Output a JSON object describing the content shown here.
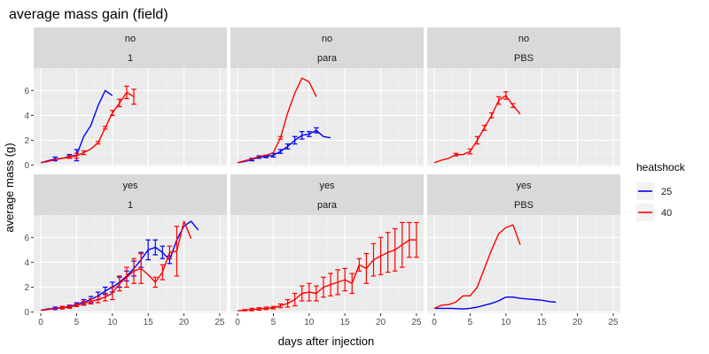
{
  "chart_data": {
    "type": "line",
    "title": "average mass gain (field)",
    "xlabel": "days after injection",
    "ylabel": "average mass (g)",
    "xlim": [
      -1,
      26
    ],
    "ylim": [
      -0.1,
      7.8
    ],
    "x_ticks": [
      0,
      5,
      10,
      15,
      20,
      25
    ],
    "y_ticks": [
      0,
      2,
      4,
      6
    ],
    "grid": true,
    "legend": {
      "title": "heatshock",
      "position": "right",
      "entries": [
        {
          "label": "25",
          "color": "#0000ff"
        },
        {
          "label": "40",
          "color": "#ff0000"
        }
      ]
    },
    "panels": [
      {
        "strip_top": "no",
        "strip_bottom": "1",
        "series": [
          {
            "name": "25",
            "color": "#0000ff",
            "x": [
              0,
              1,
              2,
              3,
              4,
              5,
              6,
              7,
              8,
              9,
              10
            ],
            "y": [
              0.2,
              0.35,
              0.5,
              0.55,
              0.7,
              0.8,
              2.3,
              3.2,
              4.8,
              6.0,
              5.6
            ],
            "err": [
              0,
              0,
              0.15,
              0,
              0.15,
              0.45,
              0,
              0,
              0,
              0,
              0
            ]
          },
          {
            "name": "40",
            "color": "#ff0000",
            "x": [
              0,
              1,
              2,
              3,
              4,
              5,
              6,
              7,
              8,
              9,
              10,
              11,
              12,
              13
            ],
            "y": [
              0.2,
              0.3,
              0.45,
              0.55,
              0.65,
              0.75,
              1.0,
              1.3,
              1.8,
              3.0,
              4.2,
              5.0,
              5.85,
              5.5
            ],
            "err": [
              0,
              0,
              0,
              0,
              0.1,
              0.2,
              0.15,
              0,
              0.1,
              0.1,
              0.2,
              0.3,
              0.5,
              0.6
            ]
          }
        ]
      },
      {
        "strip_top": "no",
        "strip_bottom": "para",
        "series": [
          {
            "name": "25",
            "color": "#0000ff",
            "x": [
              0,
              1,
              2,
              3,
              4,
              5,
              6,
              7,
              8,
              9,
              10,
              11,
              12,
              13
            ],
            "y": [
              0.2,
              0.3,
              0.45,
              0.65,
              0.7,
              0.8,
              1.1,
              1.5,
              2.0,
              2.4,
              2.5,
              2.8,
              2.3,
              2.2
            ],
            "err": [
              0,
              0,
              0.1,
              0.1,
              0.1,
              0.15,
              0.15,
              0.2,
              0.3,
              0.3,
              0.2,
              0.2,
              0,
              0
            ]
          },
          {
            "name": "40",
            "color": "#ff0000",
            "x": [
              0,
              1,
              2,
              3,
              4,
              5,
              6,
              7,
              8,
              9,
              10,
              11
            ],
            "y": [
              0.2,
              0.35,
              0.5,
              0.7,
              0.8,
              1.0,
              2.2,
              4.2,
              5.8,
              7.0,
              6.7,
              5.5
            ],
            "err": [
              0,
              0,
              0,
              0,
              0,
              0,
              0.1,
              0,
              0,
              0,
              0,
              0
            ]
          }
        ]
      },
      {
        "strip_top": "no",
        "strip_bottom": "PBS",
        "series": [
          {
            "name": "40",
            "color": "#ff0000",
            "x": [
              0,
              1,
              2,
              3,
              4,
              5,
              6,
              7,
              8,
              9,
              10,
              11,
              12
            ],
            "y": [
              0.2,
              0.4,
              0.55,
              0.85,
              0.85,
              1.1,
              2.0,
              3.0,
              4.0,
              5.2,
              5.6,
              4.8,
              4.1
            ],
            "err": [
              0,
              0,
              0,
              0.1,
              0,
              0.2,
              0.3,
              0.2,
              0.2,
              0.3,
              0.3,
              0.15,
              0
            ]
          }
        ]
      },
      {
        "strip_top": "yes",
        "strip_bottom": "1",
        "series": [
          {
            "name": "25",
            "color": "#0000ff",
            "x": [
              0,
              1,
              2,
              3,
              4,
              5,
              6,
              7,
              8,
              9,
              10,
              11,
              12,
              13,
              14,
              15,
              16,
              17,
              18,
              19,
              20,
              21,
              22
            ],
            "y": [
              0.15,
              0.25,
              0.3,
              0.35,
              0.45,
              0.6,
              0.8,
              1.0,
              1.3,
              1.7,
              2.0,
              2.4,
              2.9,
              3.5,
              4.2,
              5.0,
              5.2,
              4.8,
              4.2,
              5.8,
              6.9,
              7.3,
              6.6
            ],
            "err": [
              0,
              0,
              0.1,
              0.1,
              0.1,
              0.15,
              0.2,
              0.25,
              0.3,
              0.3,
              0.4,
              0.4,
              0.4,
              0.6,
              0.6,
              0.8,
              0.6,
              0.5,
              0.3,
              0,
              0,
              0,
              0
            ]
          },
          {
            "name": "40",
            "color": "#ff0000",
            "x": [
              0,
              1,
              2,
              3,
              4,
              5,
              6,
              7,
              8,
              9,
              10,
              11,
              12,
              13,
              14,
              15,
              16,
              17,
              18,
              19,
              20,
              21
            ],
            "y": [
              0.15,
              0.2,
              0.3,
              0.35,
              0.4,
              0.55,
              0.7,
              0.85,
              1.0,
              1.2,
              1.5,
              2.3,
              2.8,
              3.3,
              3.5,
              3.0,
              2.4,
              3.2,
              4.8,
              4.9,
              7.3,
              5.9
            ],
            "err": [
              0,
              0,
              0,
              0.1,
              0.1,
              0.1,
              0.15,
              0.2,
              0.25,
              0.3,
              0.5,
              0.6,
              0.8,
              1.0,
              1.2,
              0,
              0.4,
              0.6,
              0.5,
              2.0,
              0,
              0
            ]
          }
        ]
      },
      {
        "strip_top": "yes",
        "strip_bottom": "para",
        "series": [
          {
            "name": "40",
            "color": "#ff0000",
            "x": [
              0,
              1,
              2,
              3,
              4,
              5,
              6,
              7,
              8,
              9,
              10,
              11,
              12,
              13,
              14,
              15,
              16,
              17,
              18,
              19,
              20,
              21,
              22,
              23,
              24,
              25
            ],
            "y": [
              0.1,
              0.15,
              0.2,
              0.25,
              0.3,
              0.35,
              0.5,
              0.7,
              1.0,
              1.5,
              1.6,
              1.5,
              2.0,
              2.2,
              2.4,
              2.6,
              2.3,
              3.8,
              3.5,
              4.2,
              4.5,
              4.8,
              5.0,
              5.4,
              5.8,
              5.8
            ],
            "err": [
              0,
              0.05,
              0.1,
              0.1,
              0.1,
              0.1,
              0.15,
              0.3,
              0.5,
              0.6,
              0.7,
              0.6,
              0.8,
              0.9,
              1.0,
              0.9,
              0.8,
              0.5,
              1.2,
              1.3,
              1.5,
              1.6,
              1.7,
              1.8,
              1.4,
              1.4
            ]
          }
        ]
      },
      {
        "strip_top": "yes",
        "strip_bottom": "PBS",
        "series": [
          {
            "name": "25",
            "color": "#0000ff",
            "x": [
              0,
              1,
              2,
              3,
              4,
              5,
              6,
              7,
              8,
              9,
              10,
              11,
              12,
              13,
              14,
              15,
              16,
              17
            ],
            "y": [
              0.3,
              0.3,
              0.3,
              0.28,
              0.25,
              0.3,
              0.4,
              0.55,
              0.7,
              0.9,
              1.2,
              1.2,
              1.1,
              1.05,
              1.0,
              0.95,
              0.85,
              0.8
            ],
            "err": [
              0,
              0,
              0,
              0,
              0,
              0,
              0,
              0,
              0,
              0,
              0,
              0,
              0,
              0,
              0,
              0,
              0,
              0
            ]
          },
          {
            "name": "40",
            "color": "#ff0000",
            "x": [
              0,
              1,
              2,
              3,
              4,
              5,
              6,
              7,
              8,
              9,
              10,
              11,
              12
            ],
            "y": [
              0.3,
              0.55,
              0.6,
              0.8,
              1.3,
              1.3,
              2.0,
              3.5,
              5.0,
              6.3,
              6.8,
              7.0,
              5.4
            ],
            "err": [
              0,
              0,
              0,
              0,
              0,
              0,
              0,
              0,
              0,
              0,
              0,
              0,
              0
            ]
          }
        ]
      }
    ]
  }
}
